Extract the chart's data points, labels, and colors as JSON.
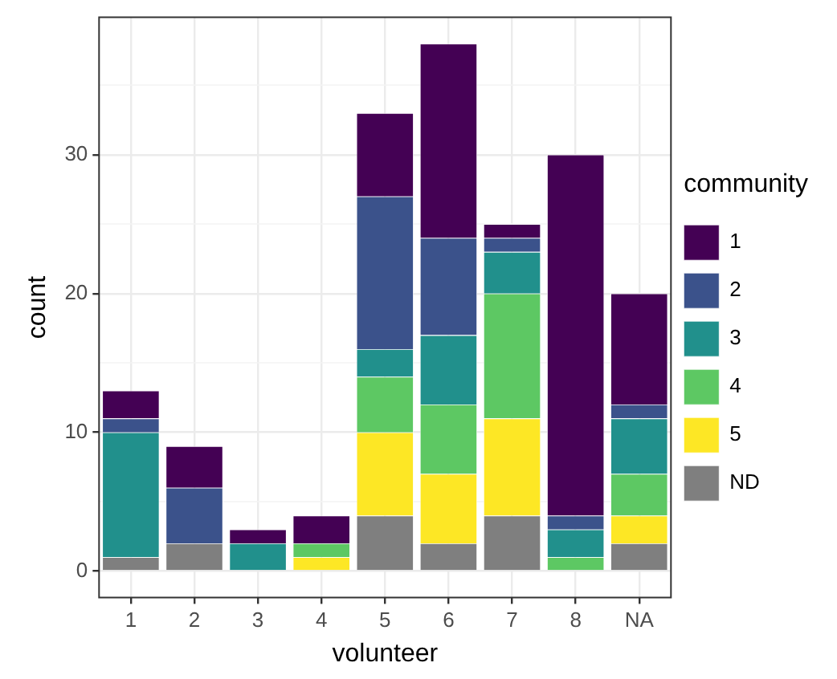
{
  "chart_data": {
    "type": "bar",
    "stacked": true,
    "xlabel": "volunteer",
    "ylabel": "count",
    "legend_title": "community",
    "legend": "right",
    "grid": true,
    "categories": [
      "1",
      "2",
      "3",
      "4",
      "5",
      "6",
      "7",
      "8",
      "NA"
    ],
    "ylim": [
      -1.9,
      39.9
    ],
    "yticks": [
      0,
      {
        "value": 5,
        "label": null
      },
      10,
      {
        "value": 15,
        "label": null
      },
      20,
      {
        "value": 25,
        "label": null
      },
      30,
      {
        "value": 35,
        "label": null
      }
    ],
    "series": [
      {
        "name": "ND",
        "color": "#7f7f7f",
        "values": [
          1,
          2,
          0,
          0,
          4,
          2,
          4,
          0,
          2
        ]
      },
      {
        "name": "5",
        "color": "#fde725",
        "values": [
          0,
          0,
          0,
          1,
          6,
          5,
          7,
          0,
          2
        ]
      },
      {
        "name": "4",
        "color": "#5dc863",
        "values": [
          0,
          0,
          0,
          1,
          4,
          5,
          9,
          1,
          3
        ]
      },
      {
        "name": "3",
        "color": "#21908c",
        "values": [
          9,
          0,
          2,
          0,
          2,
          5,
          3,
          2,
          4
        ]
      },
      {
        "name": "2",
        "color": "#3b528b",
        "values": [
          1,
          4,
          0,
          0,
          11,
          7,
          1,
          1,
          1
        ]
      },
      {
        "name": "1",
        "color": "#440154",
        "values": [
          2,
          3,
          1,
          2,
          6,
          14,
          1,
          26,
          8
        ]
      }
    ]
  }
}
